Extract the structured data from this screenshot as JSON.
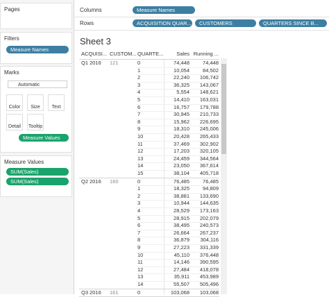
{
  "side": {
    "pages": "Pages",
    "filters": "Filters",
    "filter_pill": "Measure Names",
    "marks": "Marks",
    "mark_type": "Automatic",
    "mark_buttons": [
      "Color",
      "Size",
      "Text",
      "Detail",
      "Tooltip"
    ],
    "marks_pill": "Measure Values",
    "measure_values": "Measure Values",
    "measure_pills": [
      "SUM(Sales)",
      "SUM(Sales)"
    ]
  },
  "shelves": {
    "columns_label": "Columns",
    "columns": [
      "Measure Names"
    ],
    "rows_label": "Rows",
    "rows": [
      "ACQUISITION QUAR...",
      "CUSTOMERS",
      "QUARTERS SINCE B..."
    ]
  },
  "sheet": {
    "title": "Sheet 3"
  },
  "table": {
    "header": [
      "ACQUISI...",
      "CUSTOM...",
      "QUARTE...",
      "Sales",
      "Running ..."
    ],
    "groups": [
      {
        "acquisition": "Q1 2016",
        "customers": "121",
        "rows": [
          [
            "0",
            "74,448",
            "74,448"
          ],
          [
            "1",
            "10,054",
            "84,502"
          ],
          [
            "2",
            "22,240",
            "106,742"
          ],
          [
            "3",
            "36,325",
            "143,067"
          ],
          [
            "4",
            "5,554",
            "148,621"
          ],
          [
            "5",
            "14,410",
            "163,031"
          ],
          [
            "6",
            "16,757",
            "179,788"
          ],
          [
            "7",
            "30,945",
            "210,733"
          ],
          [
            "8",
            "15,962",
            "226,695"
          ],
          [
            "9",
            "18,310",
            "245,006"
          ],
          [
            "10",
            "20,428",
            "265,433"
          ],
          [
            "11",
            "37,469",
            "302,902"
          ],
          [
            "12",
            "17,203",
            "320,105"
          ],
          [
            "13",
            "24,459",
            "344,564"
          ],
          [
            "14",
            "23,050",
            "367,614"
          ],
          [
            "15",
            "38,104",
            "405,718"
          ]
        ]
      },
      {
        "acquisition": "Q2 2016",
        "customers": "160",
        "rows": [
          [
            "0",
            "76,485",
            "76,485"
          ],
          [
            "1",
            "18,325",
            "94,809"
          ],
          [
            "2",
            "38,881",
            "133,690"
          ],
          [
            "3",
            "10,944",
            "144,635"
          ],
          [
            "4",
            "28,529",
            "173,163"
          ],
          [
            "5",
            "28,915",
            "202,079"
          ],
          [
            "6",
            "38,495",
            "240,573"
          ],
          [
            "7",
            "26,664",
            "267,237"
          ],
          [
            "8",
            "36,879",
            "304,116"
          ],
          [
            "9",
            "27,223",
            "331,339"
          ],
          [
            "10",
            "45,110",
            "376,448"
          ],
          [
            "11",
            "14,146",
            "390,595"
          ],
          [
            "12",
            "27,484",
            "418,078"
          ],
          [
            "13",
            "35,911",
            "453,989"
          ],
          [
            "14",
            "55,507",
            "505,496"
          ]
        ]
      },
      {
        "acquisition": "Q3 2016",
        "customers": "161",
        "rows": [
          [
            "0",
            "103,068",
            "103,068"
          ]
        ]
      }
    ]
  }
}
